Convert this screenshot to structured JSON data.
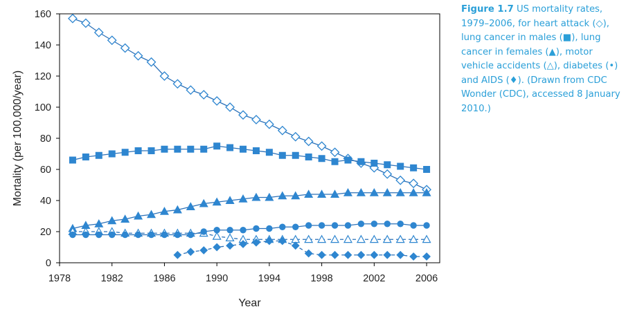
{
  "caption": {
    "label": "Figure 1.7",
    "text": "US mortality rates, 1979–2006, for heart attack (◇), lung cancer in males (■), lung cancer in females (▲), motor vehicle accidents (△), diabetes (•) and AIDS (♦). (Drawn from CDC Wonder (CDC), accessed 8 January 2010.)"
  },
  "colors": {
    "series": "#2e86d0",
    "line": "#2a70b8",
    "caption": "#2a9fd8",
    "axis": "#000000"
  },
  "chart_data": {
    "type": "line",
    "xlabel": "Year",
    "ylabel": "Mortality (per 100,000/year)",
    "xlim": [
      1978,
      2007
    ],
    "ylim": [
      0,
      160
    ],
    "xticks": [
      1978,
      1982,
      1986,
      1990,
      1994,
      1998,
      2002,
      2006
    ],
    "yticks": [
      0,
      20,
      40,
      60,
      80,
      100,
      120,
      140,
      160
    ],
    "grid": false,
    "legend": "none",
    "series": [
      {
        "key": "heart-attack",
        "marker": "diamond-open",
        "line": "solid",
        "x": [
          1979,
          1980,
          1981,
          1982,
          1983,
          1984,
          1985,
          1986,
          1987,
          1988,
          1989,
          1990,
          1991,
          1992,
          1993,
          1994,
          1995,
          1996,
          1997,
          1998,
          1999,
          2000,
          2001,
          2002,
          2003,
          2004,
          2005,
          2006
        ],
        "y": [
          157,
          154,
          148,
          143,
          138,
          133,
          129,
          120,
          115,
          111,
          108,
          104,
          100,
          95,
          92,
          89,
          85,
          81,
          78,
          75,
          71,
          67,
          64,
          61,
          57,
          53,
          51,
          47
        ]
      },
      {
        "key": "lung-cancer-males",
        "marker": "square",
        "line": "solid",
        "x": [
          1979,
          1980,
          1981,
          1982,
          1983,
          1984,
          1985,
          1986,
          1987,
          1988,
          1989,
          1990,
          1991,
          1992,
          1993,
          1994,
          1995,
          1996,
          1997,
          1998,
          1999,
          2000,
          2001,
          2002,
          2003,
          2004,
          2005,
          2006
        ],
        "y": [
          66,
          68,
          69,
          70,
          71,
          72,
          72,
          73,
          73,
          73,
          73,
          75,
          74,
          73,
          72,
          71,
          69,
          69,
          68,
          67,
          65,
          66,
          65,
          64,
          63,
          62,
          61,
          60
        ]
      },
      {
        "key": "lung-cancer-females",
        "marker": "triangle",
        "line": "solid",
        "x": [
          1979,
          1980,
          1981,
          1982,
          1983,
          1984,
          1985,
          1986,
          1987,
          1988,
          1989,
          1990,
          1991,
          1992,
          1993,
          1994,
          1995,
          1996,
          1997,
          1998,
          1999,
          2000,
          2001,
          2002,
          2003,
          2004,
          2005,
          2006
        ],
        "y": [
          22,
          24,
          25,
          27,
          28,
          30,
          31,
          33,
          34,
          36,
          38,
          39,
          40,
          41,
          42,
          42,
          43,
          43,
          44,
          44,
          44,
          45,
          45,
          45,
          45,
          45,
          45,
          45
        ]
      },
      {
        "key": "motor-vehicle-accidents",
        "marker": "triangle-open",
        "line": "dashed",
        "x": [
          1979,
          1980,
          1981,
          1982,
          1983,
          1984,
          1985,
          1986,
          1987,
          1988,
          1989,
          1990,
          1991,
          1992,
          1993,
          1994,
          1995,
          1996,
          1997,
          1998,
          1999,
          2000,
          2001,
          2002,
          2003,
          2004,
          2005,
          2006
        ],
        "y": [
          20,
          20,
          20,
          20,
          19,
          19,
          19,
          19,
          19,
          19,
          19,
          17,
          16,
          15,
          15,
          15,
          15,
          15,
          15,
          15,
          15,
          15,
          15,
          15,
          15,
          15,
          15,
          15
        ]
      },
      {
        "key": "diabetes",
        "marker": "circle",
        "line": "solid",
        "x": [
          1979,
          1980,
          1981,
          1982,
          1983,
          1984,
          1985,
          1986,
          1987,
          1988,
          1989,
          1990,
          1991,
          1992,
          1993,
          1994,
          1995,
          1996,
          1997,
          1998,
          1999,
          2000,
          2001,
          2002,
          2003,
          2004,
          2005,
          2006
        ],
        "y": [
          18,
          18,
          18,
          18,
          18,
          18,
          18,
          18,
          18,
          18,
          20,
          21,
          21,
          21,
          22,
          22,
          23,
          23,
          24,
          24,
          24,
          24,
          25,
          25,
          25,
          25,
          24,
          24
        ]
      },
      {
        "key": "aids",
        "marker": "diamond",
        "line": "dashed",
        "x": [
          1987,
          1988,
          1989,
          1990,
          1991,
          1992,
          1993,
          1994,
          1995,
          1996,
          1997,
          1998,
          1999,
          2000,
          2001,
          2002,
          2003,
          2004,
          2005,
          2006
        ],
        "y": [
          5,
          7,
          8,
          10,
          11,
          12,
          13,
          14,
          14,
          11,
          6,
          5,
          5,
          5,
          5,
          5,
          5,
          5,
          4,
          4
        ]
      }
    ]
  }
}
